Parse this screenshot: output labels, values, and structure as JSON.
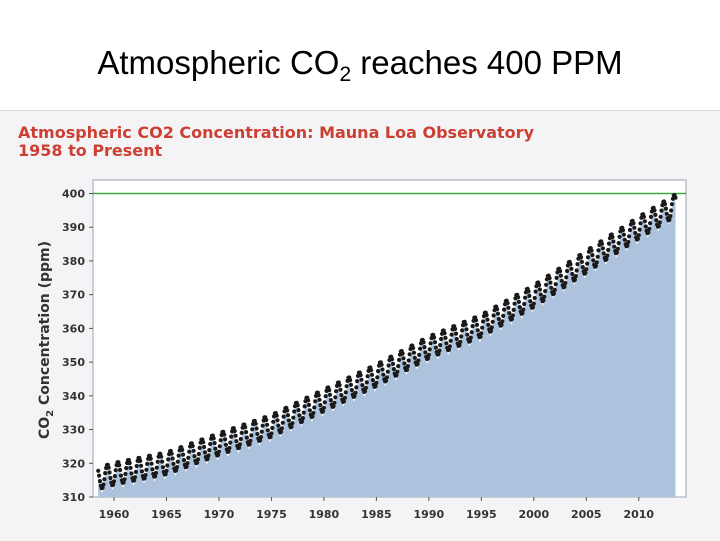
{
  "slide": {
    "title_prefix": "Atmospheric CO",
    "title_sub": "2",
    "title_suffix": " reaches 400 PPM"
  },
  "colors": {
    "title": "#cc3f33",
    "area": "#adc3dd",
    "line400": "#3aa83a",
    "dots": "#1a1a1a"
  },
  "chart_data": {
    "type": "scatter",
    "title": "Atmospheric CO2 Concentration: Mauna Loa Observatory",
    "subtitle": "1958 to Present",
    "xlabel": "",
    "ylabel_prefix": "CO",
    "ylabel_sub": "2",
    "ylabel_suffix": " Concentration (ppm)",
    "xlim": [
      1958,
      2014.5
    ],
    "ylim": [
      310,
      404
    ],
    "x_ticks": [
      1960,
      1965,
      1970,
      1975,
      1980,
      1985,
      1990,
      1995,
      2000,
      2005,
      2010
    ],
    "y_ticks": [
      310,
      320,
      330,
      340,
      350,
      360,
      370,
      380,
      390,
      400
    ],
    "reference_line": 400,
    "grid": false,
    "area_fill": true,
    "series": [
      {
        "x": [
          1958.5,
          1960,
          1965,
          1970,
          1975,
          1980,
          1985,
          1990,
          1995,
          2000,
          2005,
          2010,
          2013.5
        ],
        "values": [
          315.5,
          316.9,
          320.0,
          325.7,
          331.1,
          338.7,
          346.1,
          354.4,
          360.8,
          369.6,
          379.8,
          389.9,
          396.5
        ],
        "seasonal_amplitude": 3.3
      }
    ]
  }
}
